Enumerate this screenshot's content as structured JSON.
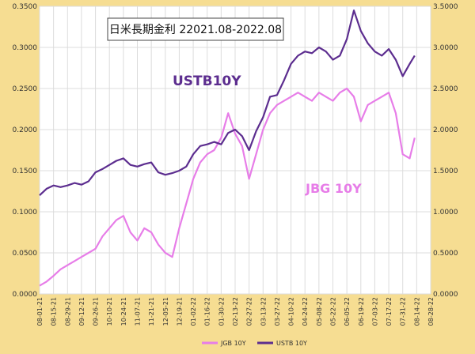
{
  "chart_data": {
    "type": "line",
    "title": "日米長期金利 22021.08-2022.08",
    "xlabel": "",
    "ylabel": "",
    "ylim_left": [
      0,
      0.35
    ],
    "ylim_right": [
      0,
      3.5
    ],
    "yticks_left": [
      "0.0000",
      "0.0500",
      "0.1000",
      "0.1500",
      "0.2000",
      "0.2500",
      "0.3000",
      "0.3500"
    ],
    "yticks_right": [
      "0.0000",
      "0.5000",
      "1.0000",
      "1.5000",
      "2.0000",
      "2.5000",
      "3.0000",
      "3.5000"
    ],
    "xticks": [
      "08-01-21",
      "08-15-21",
      "08-29-21",
      "09-12-21",
      "09-26-21",
      "10-10-21",
      "10-24-21",
      "11-07-21",
      "11-21-21",
      "12-05-21",
      "12-19-21",
      "01-02-22",
      "01-16-22",
      "01-30-22",
      "02-13-22",
      "02-27-22",
      "03-13-22",
      "03-27-22",
      "04-10-22",
      "04-24-22",
      "05-08-22",
      "05-22-22",
      "06-05-22",
      "06-19-22",
      "07-03-22",
      "07-17-22",
      "07-31-22",
      "08-14-22",
      "08-28-22"
    ],
    "grid": true,
    "legend": "bottom",
    "annotations": {
      "us": "USTB10Y",
      "jp": "JBG 10Y"
    },
    "colors": {
      "jgb": "#e77de8",
      "ustb": "#5c2d8f",
      "plot_bg": "#ffffff",
      "page_bg": "#f6dd92"
    },
    "series": [
      {
        "name": "JGB 10Y",
        "axis": "left",
        "x": [
          "08-01-21",
          "08-08-21",
          "08-15-21",
          "08-22-21",
          "08-29-21",
          "09-05-21",
          "09-12-21",
          "09-19-21",
          "09-26-21",
          "10-03-21",
          "10-10-21",
          "10-17-21",
          "10-24-21",
          "10-31-21",
          "11-07-21",
          "11-14-21",
          "11-21-21",
          "11-28-21",
          "12-05-21",
          "12-12-21",
          "12-19-21",
          "12-26-21",
          "01-02-22",
          "01-09-22",
          "01-16-22",
          "01-23-22",
          "01-30-22",
          "02-06-22",
          "02-13-22",
          "02-20-22",
          "02-27-22",
          "03-06-22",
          "03-13-22",
          "03-20-22",
          "03-27-22",
          "04-03-22",
          "04-10-22",
          "04-17-22",
          "04-24-22",
          "05-01-22",
          "05-08-22",
          "05-15-22",
          "05-22-22",
          "05-29-22",
          "06-05-22",
          "06-12-22",
          "06-19-22",
          "06-26-22",
          "07-03-22",
          "07-10-22",
          "07-17-22",
          "07-24-22",
          "07-31-22",
          "08-07-22",
          "08-12-22"
        ],
        "values": [
          0.01,
          0.015,
          0.022,
          0.03,
          0.035,
          0.04,
          0.045,
          0.05,
          0.055,
          0.07,
          0.08,
          0.09,
          0.095,
          0.075,
          0.065,
          0.08,
          0.075,
          0.06,
          0.05,
          0.045,
          0.08,
          0.11,
          0.14,
          0.16,
          0.17,
          0.175,
          0.19,
          0.22,
          0.195,
          0.18,
          0.14,
          0.17,
          0.2,
          0.22,
          0.23,
          0.235,
          0.24,
          0.245,
          0.24,
          0.235,
          0.245,
          0.24,
          0.235,
          0.245,
          0.25,
          0.24,
          0.21,
          0.23,
          0.235,
          0.24,
          0.245,
          0.22,
          0.17,
          0.165,
          0.19
        ]
      },
      {
        "name": "USTB 10Y",
        "axis": "right",
        "x": [
          "08-01-21",
          "08-08-21",
          "08-15-21",
          "08-22-21",
          "08-29-21",
          "09-05-21",
          "09-12-21",
          "09-19-21",
          "09-26-21",
          "10-03-21",
          "10-10-21",
          "10-17-21",
          "10-24-21",
          "10-31-21",
          "11-07-21",
          "11-14-21",
          "11-21-21",
          "11-28-21",
          "12-05-21",
          "12-12-21",
          "12-19-21",
          "12-26-21",
          "01-02-22",
          "01-09-22",
          "01-16-22",
          "01-23-22",
          "01-30-22",
          "02-06-22",
          "02-13-22",
          "02-20-22",
          "02-27-22",
          "03-06-22",
          "03-13-22",
          "03-20-22",
          "03-27-22",
          "04-03-22",
          "04-10-22",
          "04-17-22",
          "04-24-22",
          "05-01-22",
          "05-08-22",
          "05-15-22",
          "05-22-22",
          "05-29-22",
          "06-05-22",
          "06-12-22",
          "06-19-22",
          "06-26-22",
          "07-03-22",
          "07-10-22",
          "07-17-22",
          "07-24-22",
          "07-31-22",
          "08-07-22",
          "08-12-22"
        ],
        "values": [
          1.2,
          1.28,
          1.32,
          1.3,
          1.32,
          1.35,
          1.33,
          1.37,
          1.48,
          1.52,
          1.57,
          1.62,
          1.65,
          1.57,
          1.55,
          1.58,
          1.6,
          1.48,
          1.45,
          1.47,
          1.5,
          1.55,
          1.7,
          1.8,
          1.82,
          1.85,
          1.82,
          1.96,
          2.0,
          1.92,
          1.75,
          1.98,
          2.15,
          2.4,
          2.42,
          2.6,
          2.8,
          2.9,
          2.95,
          2.93,
          3.0,
          2.95,
          2.85,
          2.9,
          3.1,
          3.45,
          3.2,
          3.05,
          2.95,
          2.9,
          2.98,
          2.85,
          2.65,
          2.8,
          2.9
        ]
      }
    ]
  }
}
